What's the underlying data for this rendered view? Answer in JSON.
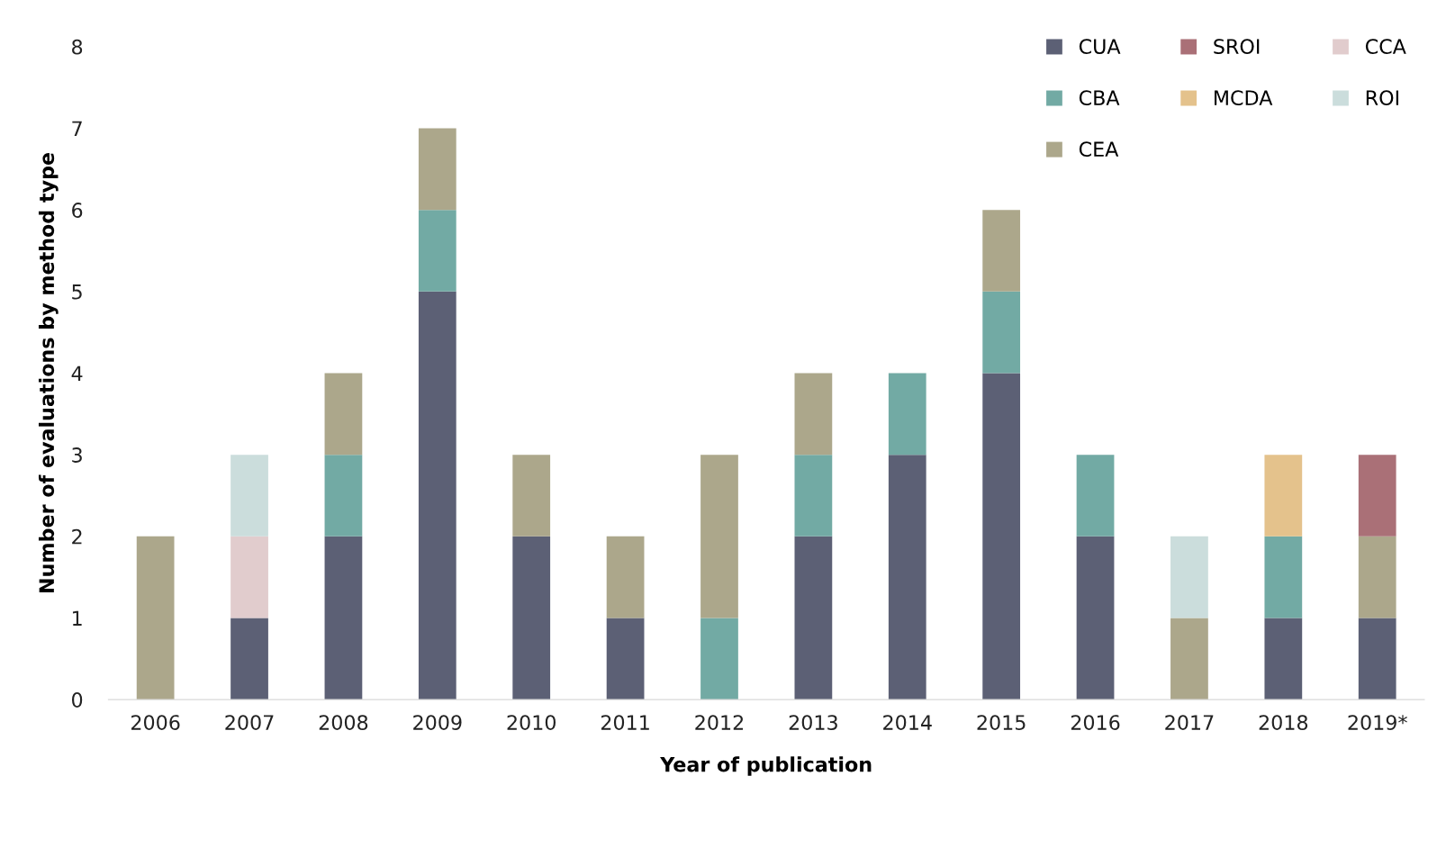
{
  "chart_data": {
    "type": "bar",
    "stacked": true,
    "xlabel": "Year of publication",
    "ylabel": "Number of evaluations by method type",
    "categories": [
      "2006",
      "2007",
      "2008",
      "2009",
      "2010",
      "2011",
      "2012",
      "2013",
      "2014",
      "2015",
      "2016",
      "2017",
      "2018",
      "2019*"
    ],
    "series": [
      {
        "name": "CUA",
        "color": "#5c6075",
        "values": [
          0,
          1,
          2,
          5,
          2,
          1,
          0,
          2,
          3,
          4,
          2,
          0,
          1,
          1
        ]
      },
      {
        "name": "CBA",
        "color": "#72aaa4",
        "values": [
          0,
          0,
          1,
          1,
          0,
          0,
          1,
          1,
          1,
          1,
          1,
          0,
          1,
          0
        ]
      },
      {
        "name": "CEA",
        "color": "#aca78b",
        "values": [
          2,
          0,
          1,
          1,
          1,
          1,
          2,
          1,
          0,
          1,
          0,
          1,
          0,
          1
        ]
      },
      {
        "name": "SROI",
        "color": "#aa7077",
        "values": [
          0,
          0,
          0,
          0,
          0,
          0,
          0,
          0,
          0,
          0,
          0,
          0,
          0,
          1
        ]
      },
      {
        "name": "MCDA",
        "color": "#e4c28c",
        "values": [
          0,
          0,
          0,
          0,
          0,
          0,
          0,
          0,
          0,
          0,
          0,
          0,
          1,
          0
        ]
      },
      {
        "name": "CCA",
        "color": "#e1cccd",
        "values": [
          0,
          1,
          0,
          0,
          0,
          0,
          0,
          0,
          0,
          0,
          0,
          0,
          0,
          0
        ]
      },
      {
        "name": "ROI",
        "color": "#cbdddc",
        "values": [
          0,
          1,
          0,
          0,
          0,
          0,
          0,
          0,
          0,
          0,
          0,
          1,
          0,
          0
        ]
      }
    ],
    "ylim": [
      0,
      8
    ],
    "yticks": [
      0,
      1,
      2,
      3,
      4,
      5,
      6,
      7,
      8
    ],
    "grid": false,
    "legend": "top right"
  }
}
